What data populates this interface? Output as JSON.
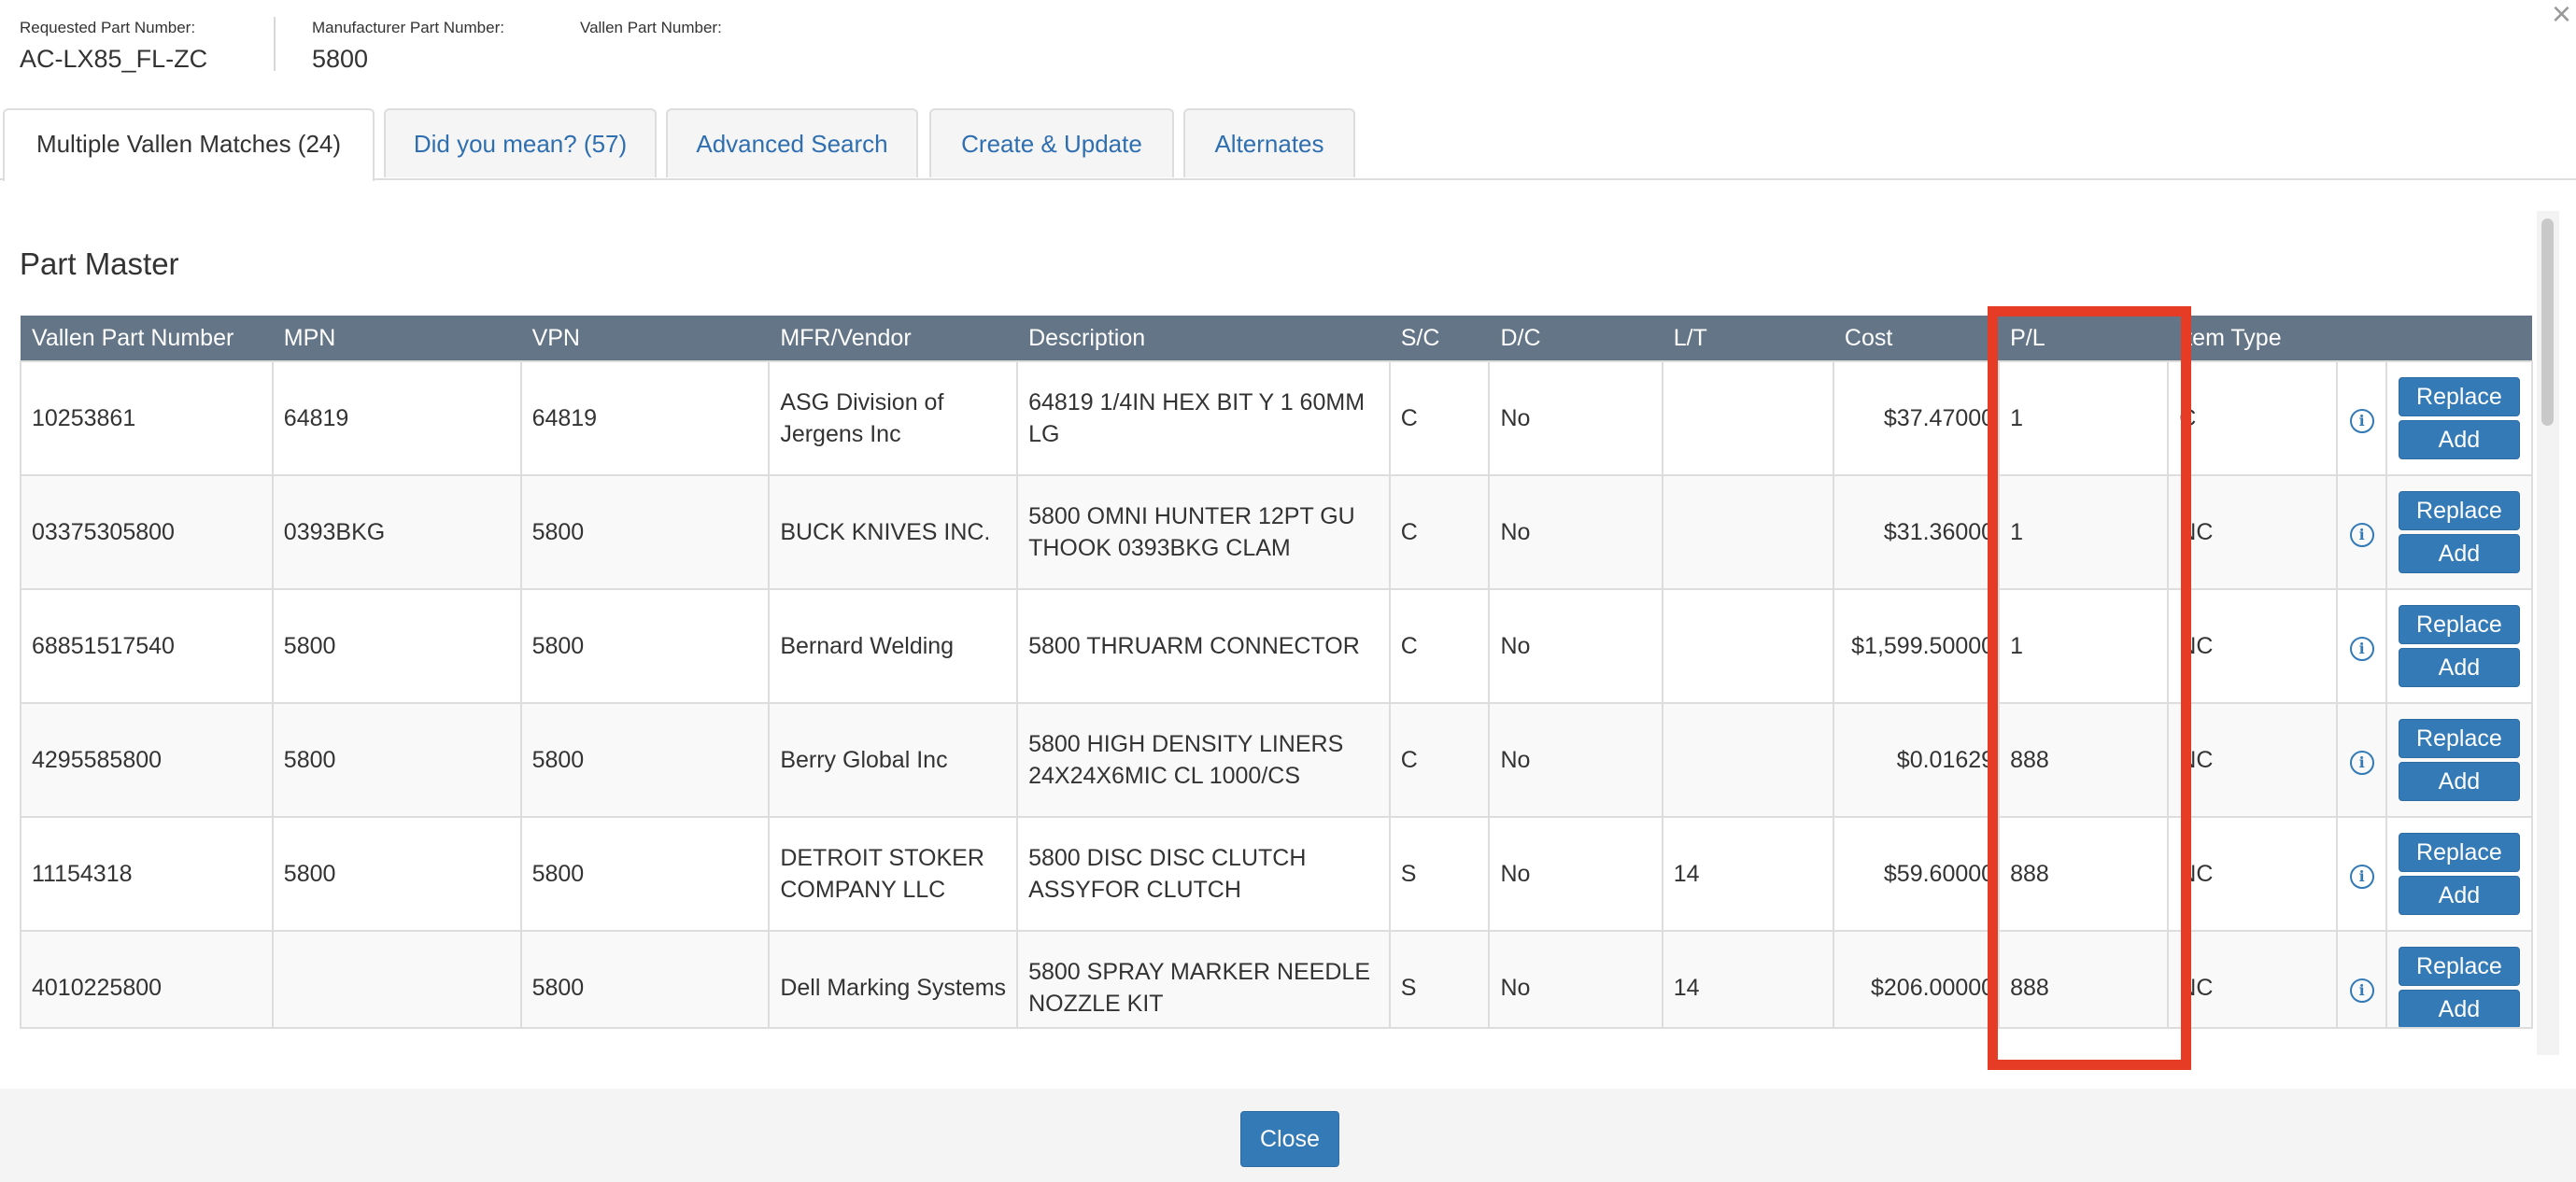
{
  "header": {
    "requested_label": "Requested Part Number:",
    "requested_value": "AC-LX85_FL-ZC",
    "manufacturer_label": "Manufacturer Part Number:",
    "manufacturer_value": "5800",
    "vallen_label": "Vallen Part Number:",
    "close_glyph": "×"
  },
  "tabs": [
    {
      "label": "Multiple Vallen Matches (24)"
    },
    {
      "label": "Did you mean? (57)"
    },
    {
      "label": "Advanced Search"
    },
    {
      "label": "Create & Update"
    },
    {
      "label": "Alternates"
    }
  ],
  "section_title": "Part Master",
  "table": {
    "columns": [
      "Vallen Part Number",
      "MPN",
      "VPN",
      "MFR/Vendor",
      "Description",
      "S/C",
      "D/C",
      "L/T",
      "Cost",
      "P/L",
      "Item Type"
    ],
    "rows": [
      {
        "vpn_vallen": "10253861",
        "mpn": "64819",
        "vpn": "64819",
        "mfr": "ASG Division of Jergens Inc",
        "desc": "64819 1/4IN HEX BIT Y 1 60MM LG",
        "sc": "C",
        "dc": "No",
        "lt": "",
        "cost": "$37.47000",
        "pl": "1",
        "item_type": "C"
      },
      {
        "vpn_vallen": "03375305800",
        "mpn": "0393BKG",
        "vpn": "5800",
        "mfr": "BUCK KNIVES INC.",
        "desc": "5800 OMNI HUNTER 12PT GU THOOK 0393BKG CLAM",
        "sc": "C",
        "dc": "No",
        "lt": "",
        "cost": "$31.36000",
        "pl": "1",
        "item_type": "NC"
      },
      {
        "vpn_vallen": "68851517540",
        "mpn": "5800",
        "vpn": "5800",
        "mfr": "Bernard Welding",
        "desc": "5800 THRUARM CONNECTOR",
        "sc": "C",
        "dc": "No",
        "lt": "",
        "cost": "$1,599.50000",
        "pl": "1",
        "item_type": "NC"
      },
      {
        "vpn_vallen": "4295585800",
        "mpn": "5800",
        "vpn": "5800",
        "mfr": "Berry Global Inc",
        "desc": "5800 HIGH DENSITY LINERS 24X24X6MIC CL 1000/CS",
        "sc": "C",
        "dc": "No",
        "lt": "",
        "cost": "$0.01629",
        "pl": "888",
        "item_type": "NC"
      },
      {
        "vpn_vallen": "11154318",
        "mpn": "5800",
        "vpn": "5800",
        "mfr": "DETROIT STOKER COMPANY LLC",
        "desc": "5800 DISC DISC CLUTCH ASSYFOR CLUTCH",
        "sc": "S",
        "dc": "No",
        "lt": "14",
        "cost": "$59.60000",
        "pl": "888",
        "item_type": "NC"
      },
      {
        "vpn_vallen": "4010225800",
        "mpn": "",
        "vpn": "5800",
        "mfr": "Dell Marking Systems",
        "desc": "5800 SPRAY MARKER NEEDLE NOZZLE KIT",
        "sc": "S",
        "dc": "No",
        "lt": "14",
        "cost": "$206.00000",
        "pl": "888",
        "item_type": "NC"
      }
    ],
    "info_glyph": "i",
    "replace_label": "Replace",
    "add_label": "Add"
  },
  "footer": {
    "close_label": "Close"
  },
  "colors": {
    "header_bg": "#637587",
    "accent": "#337ab7",
    "highlight": "#e63b24"
  },
  "icons": {
    "info": "info-circle-icon",
    "close": "close-icon"
  }
}
